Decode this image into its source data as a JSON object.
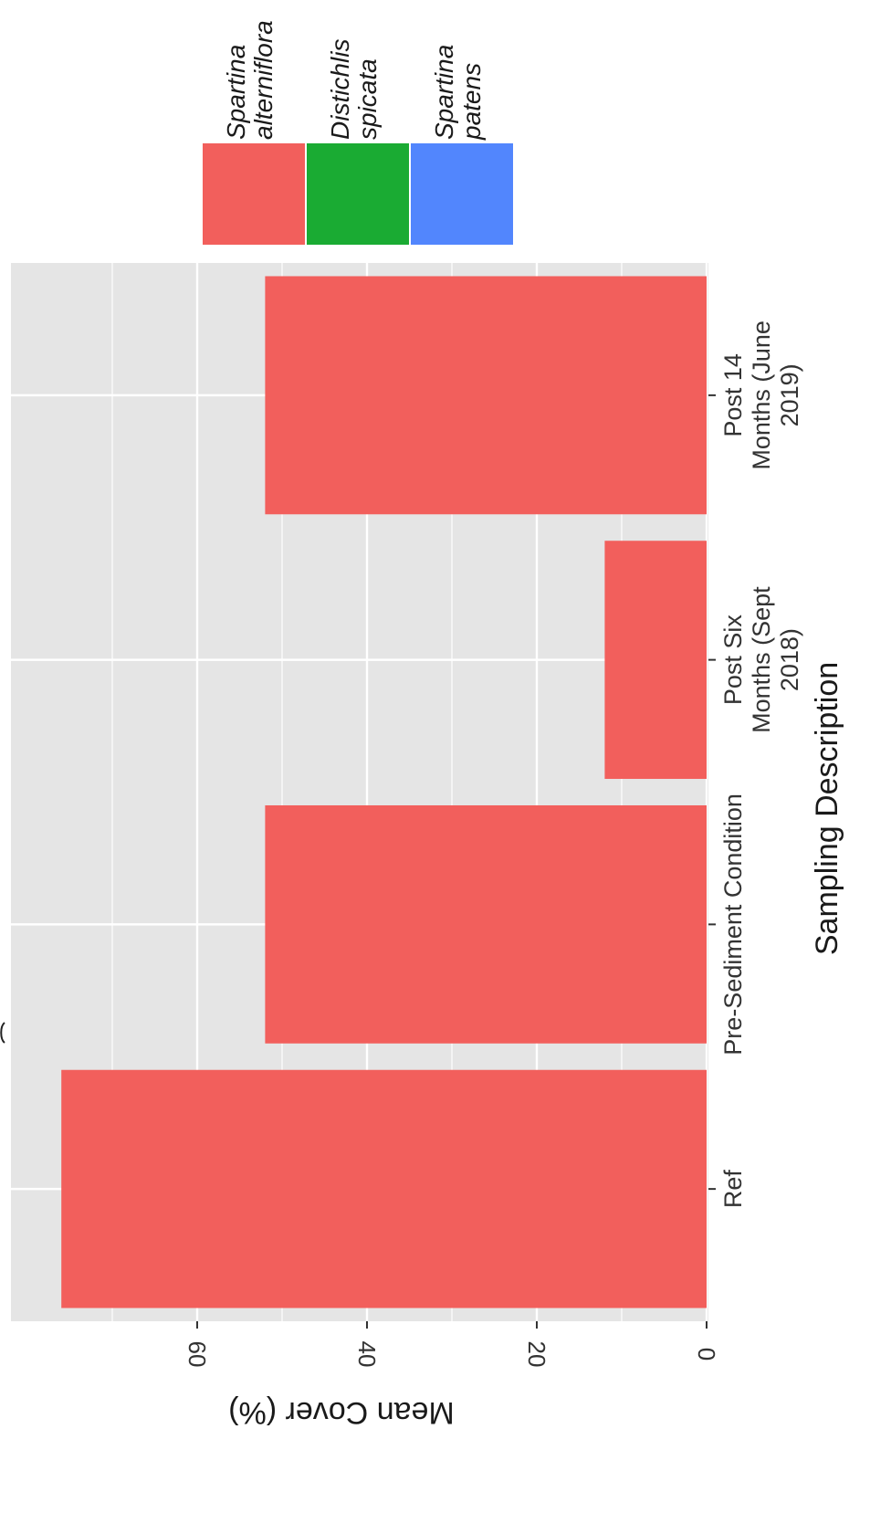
{
  "chart_data": {
    "type": "bar",
    "orientation": "rotated-90-clockwise",
    "categories": [
      "Ref",
      "Pre-Sediment Condition",
      "Post Six Months (Sept 2018)",
      "Post 14 Months (June 2019)"
    ],
    "category_lines": [
      [
        "Ref"
      ],
      [
        "Pre-Sediment Condition"
      ],
      [
        "Post Six",
        "Months (Sept",
        "2018)"
      ],
      [
        "Post 14",
        "Months (June",
        "2019)"
      ]
    ],
    "series": [
      {
        "name": "Spartina alterniflora",
        "values": [
          76,
          52,
          12,
          52
        ]
      }
    ],
    "xlabel": "Sampling Description",
    "ylabel": "Mean Cover (%)",
    "ylim": [
      0,
      80
    ],
    "yticks": [
      0,
      20,
      40,
      60
    ],
    "yminor": [
      10,
      30,
      50,
      70
    ],
    "grid": true,
    "legend": {
      "placement": "top-right",
      "entries": [
        {
          "lines": [
            "Spartina",
            "alterniflora"
          ],
          "color": "#f25f5c"
        },
        {
          "lines": [
            "Distichlis",
            "spicata"
          ],
          "color": "#1aab33"
        },
        {
          "lines": [
            "Spartina",
            "patens"
          ],
          "color": "#5286fd"
        }
      ]
    },
    "colors": {
      "panel": "#e5e5e5",
      "grid": "#ffffff",
      "tick": "#333333",
      "text": "#1a1a1a"
    }
  }
}
